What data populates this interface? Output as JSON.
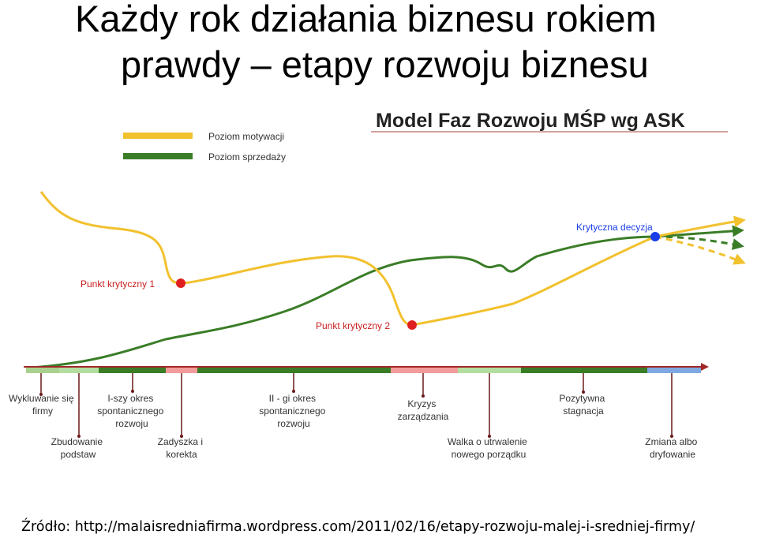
{
  "slide": {
    "title_line1": "Każdy rok działania biznesu rokiem",
    "title_line2": "prawdy – etapy rozwoju biznesu"
  },
  "diagram": {
    "heading": "Model Faz Rozwoju MŚP wg ASK",
    "legend": [
      {
        "label": "Poziom motywacji",
        "color": "#f2c12e"
      },
      {
        "label": "Poziom sprzedaży",
        "color": "#3a7d27"
      }
    ],
    "markers": [
      {
        "label": "Punkt krytyczny 1",
        "color": "#e02020"
      },
      {
        "label": "Punkt krytyczny 2",
        "color": "#e02020"
      },
      {
        "label": "Krytyczna decyzja",
        "color": "#1a3ee8"
      }
    ],
    "stages": [
      {
        "label_lines": [
          "Wykluwanie się",
          "firmy"
        ]
      },
      {
        "label_lines": [
          "Zbudowanie",
          "podstaw"
        ]
      },
      {
        "label_lines": [
          "I-szy okres",
          "spontanicznego",
          "rozwoju"
        ]
      },
      {
        "label_lines": [
          "Zadyszka i",
          "korekta"
        ]
      },
      {
        "label_lines": [
          "II - gi okres",
          "spontanicznego",
          "rozwoju"
        ]
      },
      {
        "label_lines": [
          "Kryzys",
          "zarządzania"
        ]
      },
      {
        "label_lines": [
          "Walka o utrwalenie",
          "nowego porządku"
        ]
      },
      {
        "label_lines": [
          "Pozytywna",
          "stagnacja"
        ]
      },
      {
        "label_lines": [
          "Zmiana albo",
          "dryfowanie"
        ]
      }
    ]
  },
  "footer": {
    "source": "Źródło: http://malaisredniafirma.wordpress.com/2011/02/16/etapy-rozwoju-malej-i-sredniej-firmy/"
  }
}
